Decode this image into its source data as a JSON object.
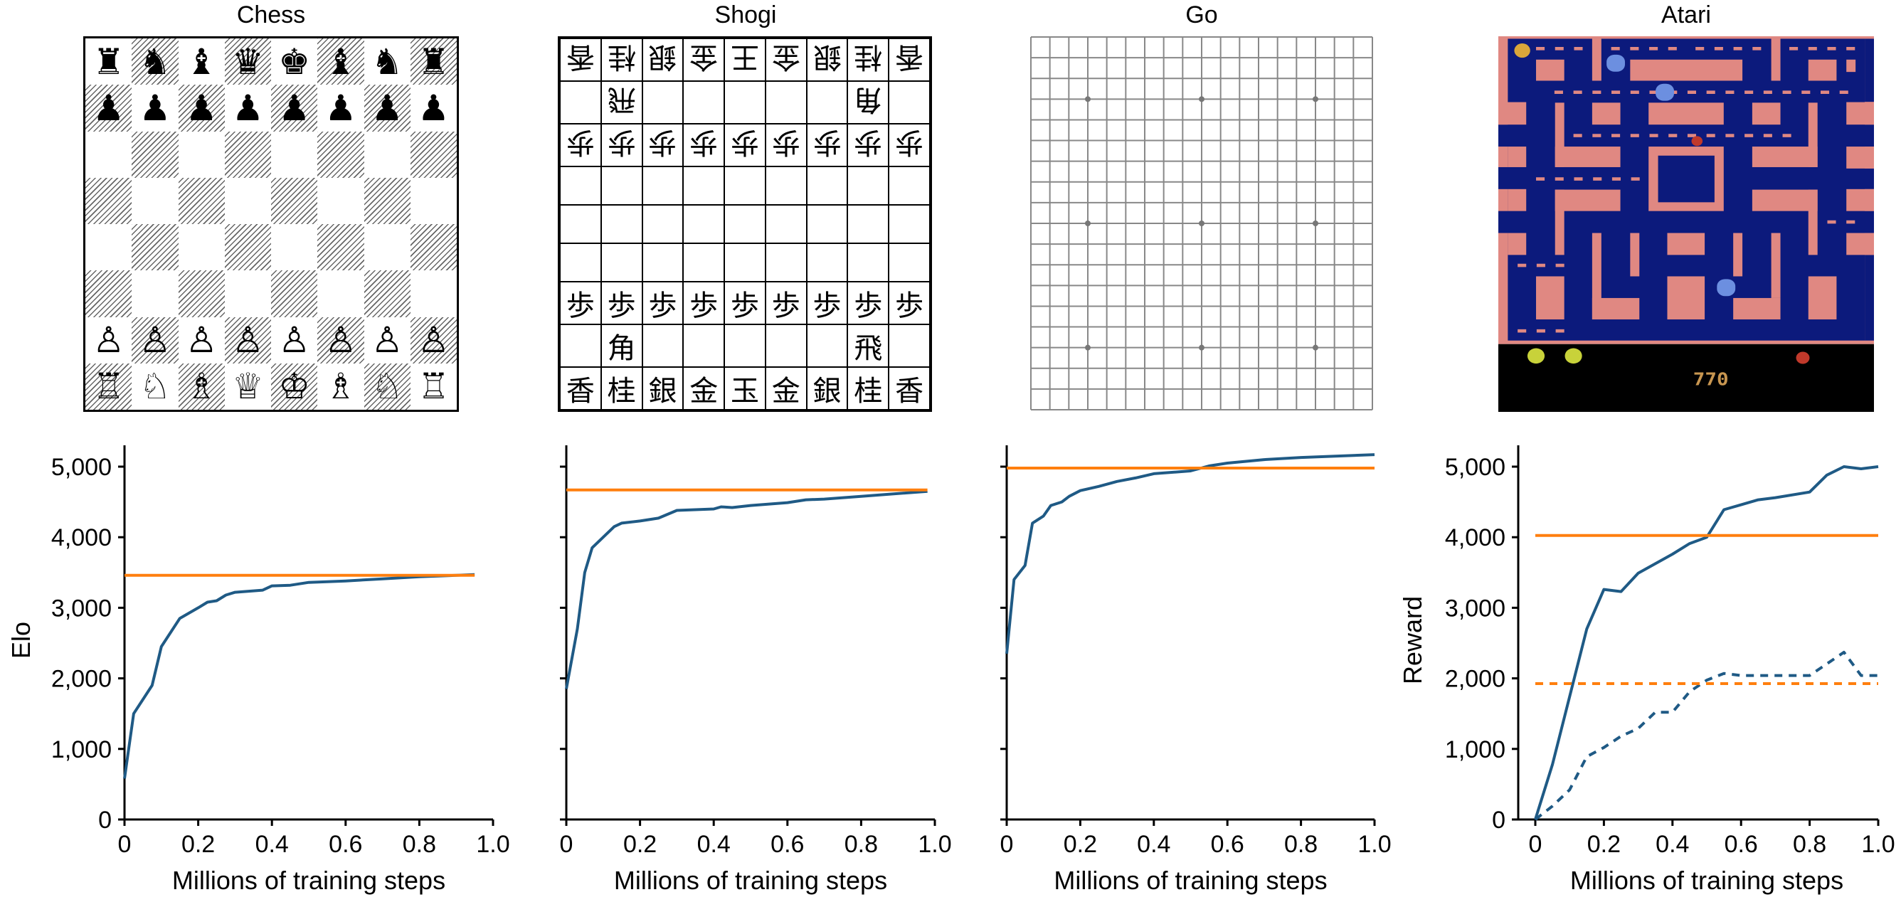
{
  "panels": [
    {
      "title": "Chess"
    },
    {
      "title": "Shogi"
    },
    {
      "title": "Go"
    },
    {
      "title": "Atari"
    }
  ],
  "chess": {
    "rows": [
      [
        "♜",
        "♞",
        "♝",
        "♛",
        "♚",
        "♝",
        "♞",
        "♜"
      ],
      [
        "♟",
        "♟",
        "♟",
        "♟",
        "♟",
        "♟",
        "♟",
        "♟"
      ],
      [
        "",
        "",
        "",
        "",
        "",
        "",
        "",
        ""
      ],
      [
        "",
        "",
        "",
        "",
        "",
        "",
        "",
        ""
      ],
      [
        "",
        "",
        "",
        "",
        "",
        "",
        "",
        ""
      ],
      [
        "",
        "",
        "",
        "",
        "",
        "",
        "",
        ""
      ],
      [
        "♙",
        "♙",
        "♙",
        "♙",
        "♙",
        "♙",
        "♙",
        "♙"
      ],
      [
        "♖",
        "♘",
        "♗",
        "♕",
        "♔",
        "♗",
        "♘",
        "♖"
      ]
    ]
  },
  "shogi": {
    "rows": [
      {
        "rotated": true,
        "cells": [
          "香",
          "桂",
          "銀",
          "金",
          "王",
          "金",
          "銀",
          "桂",
          "香"
        ]
      },
      {
        "rotated": true,
        "cells": [
          "",
          "飛",
          "",
          "",
          "",
          "",
          "",
          "角",
          ""
        ]
      },
      {
        "rotated": true,
        "cells": [
          "歩",
          "歩",
          "歩",
          "歩",
          "歩",
          "歩",
          "歩",
          "歩",
          "歩"
        ]
      },
      {
        "rotated": false,
        "cells": [
          "",
          "",
          "",
          "",
          "",
          "",
          "",
          "",
          ""
        ]
      },
      {
        "rotated": false,
        "cells": [
          "",
          "",
          "",
          "",
          "",
          "",
          "",
          "",
          ""
        ]
      },
      {
        "rotated": false,
        "cells": [
          "",
          "",
          "",
          "",
          "",
          "",
          "",
          "",
          ""
        ]
      },
      {
        "rotated": false,
        "cells": [
          "歩",
          "歩",
          "歩",
          "歩",
          "歩",
          "歩",
          "歩",
          "歩",
          "歩"
        ]
      },
      {
        "rotated": false,
        "cells": [
          "",
          "角",
          "",
          "",
          "",
          "",
          "",
          "飛",
          ""
        ]
      },
      {
        "rotated": false,
        "cells": [
          "香",
          "桂",
          "銀",
          "金",
          "玉",
          "金",
          "銀",
          "桂",
          "香"
        ]
      }
    ]
  },
  "go": {
    "size": 19,
    "star_points": [
      4,
      10,
      16
    ]
  },
  "atari": {
    "score": "770",
    "colors": {
      "maze": "#0c1a7c",
      "wall": "#e08882",
      "hud": "#000000",
      "score": "#c89650"
    }
  },
  "colors": {
    "muzero": "#1f5a85",
    "reference": "#ff7f0e"
  },
  "chart_data": [
    {
      "type": "line",
      "ylabel": "Elo",
      "xlabel": "Millions of training steps",
      "xlim": [
        0,
        1.0
      ],
      "ylim": [
        0,
        5300
      ],
      "xticks": [
        "0",
        "0.2",
        "0.4",
        "0.6",
        "0.8",
        "1.0"
      ],
      "yticks": [
        "0",
        "1,000",
        "2,000",
        "3,000",
        "4,000",
        "5,000"
      ],
      "show_ytick_labels": true,
      "grid": false,
      "series": [
        {
          "color": "#1f5a85",
          "dash": false,
          "x": [
            0,
            0.025,
            0.075,
            0.1,
            0.15,
            0.2,
            0.225,
            0.25,
            0.275,
            0.3,
            0.375,
            0.4,
            0.45,
            0.5,
            0.6,
            0.7,
            0.8,
            0.95
          ],
          "y": [
            580,
            1500,
            1900,
            2450,
            2850,
            3000,
            3080,
            3100,
            3180,
            3220,
            3250,
            3310,
            3320,
            3360,
            3380,
            3410,
            3440,
            3470
          ]
        },
        {
          "color": "#ff7f0e",
          "dash": false,
          "x": [
            0,
            0.95
          ],
          "y": [
            3460,
            3460
          ]
        }
      ]
    },
    {
      "type": "line",
      "ylabel": "",
      "xlabel": "Millions of training steps",
      "xlim": [
        0,
        1.0
      ],
      "ylim": [
        0,
        5300
      ],
      "xticks": [
        "0",
        "0.2",
        "0.4",
        "0.6",
        "0.8",
        "1.0"
      ],
      "yticks": [
        "0",
        "1,000",
        "2,000",
        "3,000",
        "4,000",
        "5,000"
      ],
      "show_ytick_labels": false,
      "grid": false,
      "series": [
        {
          "color": "#1f5a85",
          "dash": false,
          "x": [
            0,
            0.03,
            0.05,
            0.07,
            0.1,
            0.13,
            0.15,
            0.2,
            0.25,
            0.3,
            0.35,
            0.4,
            0.42,
            0.45,
            0.5,
            0.6,
            0.65,
            0.7,
            0.8,
            0.98
          ],
          "y": [
            1850,
            2700,
            3500,
            3850,
            4000,
            4150,
            4200,
            4230,
            4270,
            4380,
            4390,
            4400,
            4430,
            4420,
            4450,
            4490,
            4530,
            4540,
            4580,
            4650
          ]
        },
        {
          "color": "#ff7f0e",
          "dash": false,
          "x": [
            0,
            0.98
          ],
          "y": [
            4670,
            4670
          ]
        }
      ]
    },
    {
      "type": "line",
      "ylabel": "",
      "xlabel": "Millions of training steps",
      "xlim": [
        0,
        1.0
      ],
      "ylim": [
        0,
        5300
      ],
      "xticks": [
        "0",
        "0.2",
        "0.4",
        "0.6",
        "0.8",
        "1.0"
      ],
      "yticks": [
        "0",
        "1,000",
        "2,000",
        "3,000",
        "4,000",
        "5,000"
      ],
      "show_ytick_labels": false,
      "grid": false,
      "series": [
        {
          "color": "#1f5a85",
          "dash": false,
          "x": [
            0,
            0.02,
            0.05,
            0.07,
            0.1,
            0.12,
            0.15,
            0.17,
            0.2,
            0.25,
            0.3,
            0.35,
            0.4,
            0.5,
            0.55,
            0.6,
            0.7,
            0.8,
            1.0
          ],
          "y": [
            2350,
            3400,
            3600,
            4200,
            4300,
            4450,
            4500,
            4580,
            4660,
            4720,
            4790,
            4840,
            4900,
            4940,
            5010,
            5050,
            5100,
            5130,
            5170
          ]
        },
        {
          "color": "#ff7f0e",
          "dash": false,
          "x": [
            0,
            1.0
          ],
          "y": [
            4980,
            4980
          ]
        }
      ]
    },
    {
      "type": "line",
      "ylabel": "Reward",
      "xlabel": "Millions of training steps",
      "xlim": [
        0,
        1.0
      ],
      "ylim": [
        0,
        5300
      ],
      "xticks": [
        "0",
        "0.2",
        "0.4",
        "0.6",
        "0.8",
        "1.0"
      ],
      "yticks": [
        "0",
        "1,000",
        "2,000",
        "3,000",
        "4,000",
        "5,000"
      ],
      "show_ytick_labels": true,
      "grid": false,
      "series": [
        {
          "color": "#1f5a85",
          "dash": false,
          "x": [
            0,
            0.05,
            0.15,
            0.2,
            0.25,
            0.3,
            0.4,
            0.45,
            0.5,
            0.55,
            0.6,
            0.65,
            0.7,
            0.8,
            0.85,
            0.9,
            0.95,
            1.0
          ],
          "y": [
            0,
            780,
            2700,
            3260,
            3230,
            3490,
            3760,
            3910,
            4000,
            4390,
            4460,
            4530,
            4560,
            4640,
            4880,
            5000,
            4970,
            5000
          ]
        },
        {
          "color": "#1f5a85",
          "dash": true,
          "x": [
            0,
            0.05,
            0.1,
            0.15,
            0.2,
            0.25,
            0.3,
            0.35,
            0.4,
            0.45,
            0.5,
            0.55,
            0.6,
            0.8,
            0.9,
            0.95,
            1.0
          ],
          "y": [
            0,
            190,
            420,
            890,
            1020,
            1180,
            1290,
            1520,
            1520,
            1810,
            1975,
            2070,
            2040,
            2040,
            2370,
            2040,
            2040
          ]
        },
        {
          "color": "#ff7f0e",
          "dash": false,
          "x": [
            0,
            1.0
          ],
          "y": [
            4025,
            4025
          ]
        },
        {
          "color": "#ff7f0e",
          "dash": true,
          "x": [
            0,
            1.0
          ],
          "y": [
            1925,
            1925
          ]
        }
      ]
    }
  ]
}
